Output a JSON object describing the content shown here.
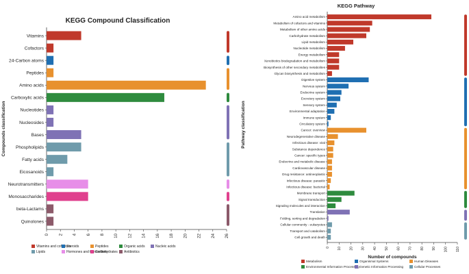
{
  "chart_data": [
    {
      "type": "bar",
      "orientation": "horizontal",
      "title": "KEGG Compound Classification",
      "ylabel": "Compounds classification",
      "xlabel": "",
      "xlim": [
        0,
        26
      ],
      "xticks": [
        "0",
        "2",
        "4",
        "6",
        "8",
        "10",
        "12",
        "14",
        "16",
        "18",
        "20",
        "22",
        "24",
        "26"
      ],
      "grid": false,
      "legend_position": "bottom",
      "categories": [
        "Vitamins",
        "Cofactors",
        "24-Carbon atoms",
        "Peptides",
        "Amino acids",
        "Carboxylic acids",
        "Nucleotides",
        "Nucleosides",
        "Bases",
        "Phospholipids",
        "Fatty acids",
        "Eicosanoids",
        "Neurotransmitters",
        "Monosaccharides",
        "beta-Lactams",
        "Quinolones"
      ],
      "values": [
        5,
        1,
        1,
        1,
        23,
        17,
        1,
        1,
        5,
        5,
        3,
        1,
        6,
        6,
        1,
        1
      ],
      "bar_groups": [
        0,
        0,
        1,
        2,
        2,
        3,
        4,
        4,
        4,
        5,
        5,
        5,
        6,
        7,
        8,
        8
      ],
      "legend": [
        {
          "label": "Vitamins and cofactors",
          "color": "#c0392b"
        },
        {
          "label": "Steroids",
          "color": "#1f6fb2"
        },
        {
          "label": "Peptides",
          "color": "#e8912e"
        },
        {
          "label": "Organic acids",
          "color": "#2e8b3e"
        },
        {
          "label": "Nucleic acids",
          "color": "#7f72b5"
        },
        {
          "label": "Lipids",
          "color": "#6f9bab"
        },
        {
          "label": "Hormones and transmitters",
          "color": "#e78ee8"
        },
        {
          "label": "Carbohydrates",
          "color": "#e0418e"
        },
        {
          "label": "Antibiotics",
          "color": "#8c5a6a"
        }
      ]
    },
    {
      "type": "bar",
      "orientation": "horizontal",
      "title": "KEGG Pathway",
      "ylabel": "Pathway classification",
      "xlabel": "Number of compounds",
      "xlim": [
        0,
        110
      ],
      "xticks": [
        "0",
        "10",
        "20",
        "30",
        "40",
        "50",
        "60",
        "70",
        "80",
        "90",
        "100",
        "110"
      ],
      "grid": false,
      "legend_position": "bottom",
      "categories": [
        "Amino acid metabolism",
        "Metabolism of cofactors and vitamins",
        "Metabolism of other amino acids",
        "Carbohydrate metabolism",
        "Lipid metabolism",
        "Nucleotide metabolism",
        "Energy metabolism",
        "Xenobiotics biodegradation and metabolism",
        "Biosynthesis of other secondary metabolites",
        "Glycan biosynthesis and metabolism",
        "Digestive system",
        "Nervous system",
        "Endocrine system",
        "Excretory system",
        "Sensory system",
        "Environmental adaptation",
        "Immune system",
        "Circulatory system",
        "Cancer: overview",
        "Neurodegenerative disease",
        "Infectious disease: viral",
        "Substance dependence",
        "Cancer: specific types",
        "Endocrine and metabolic disease",
        "Cardiovascular disease",
        "Drug resistance: antineoplastic",
        "Infectious disease: parasitic",
        "Infectious disease: bacterial",
        "Membrane transport",
        "Signal transduction",
        "Signaling molecules and interaction",
        "Translation",
        "Folding, sorting and degradation",
        "Cellular community - eukaryotes",
        "Transport and catabolism",
        "Cell growth and death"
      ],
      "values": [
        88,
        38,
        36,
        33,
        22,
        15,
        10,
        10,
        10,
        4,
        35,
        18,
        12,
        11,
        8,
        6,
        3,
        1,
        33,
        9,
        6,
        5,
        5,
        4,
        4,
        4,
        3,
        2,
        23,
        12,
        7,
        19,
        1,
        4,
        3,
        3
      ],
      "bar_groups": [
        0,
        0,
        0,
        0,
        0,
        0,
        0,
        0,
        0,
        0,
        1,
        1,
        1,
        1,
        1,
        1,
        1,
        1,
        2,
        2,
        2,
        2,
        2,
        2,
        2,
        2,
        2,
        2,
        3,
        3,
        3,
        4,
        4,
        5,
        5,
        5
      ],
      "legend": [
        {
          "label": "Metabolism",
          "color": "#c0392b"
        },
        {
          "label": "Organismal Systems",
          "color": "#1f6fb2"
        },
        {
          "label": "Human Diseases",
          "color": "#e8912e"
        },
        {
          "label": "Environmental Information Processing",
          "color": "#2e8b3e"
        },
        {
          "label": "Genetic Information Processing",
          "color": "#7f72b5"
        },
        {
          "label": "Cellular Processes",
          "color": "#6f9bab"
        }
      ]
    }
  ]
}
